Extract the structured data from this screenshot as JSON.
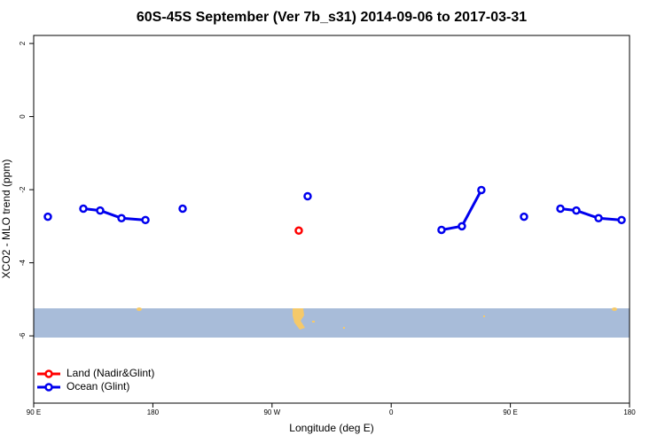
{
  "chart_data": {
    "type": "line",
    "title": "60S-45S September (Ver 7b_s31)   2014-09-06 to 2017-03-31",
    "x_label": "Longitude (deg E)",
    "y_label": "XCO2 - MLO trend (ppm)",
    "xlim": [
      90,
      540
    ],
    "xticks": [
      {
        "value": 90,
        "label": "90 E"
      },
      180,
      {
        "value": 270,
        "label": "90 W"
      },
      {
        "value": 360,
        "label": "0"
      },
      {
        "value": 450,
        "label": "90 E"
      },
      {
        "value": 540,
        "label": "180"
      }
    ],
    "ylim": [
      -7.84,
      2.22
    ],
    "yticks": [
      2,
      0,
      -2,
      -4,
      -6
    ],
    "legend": "bottom-left",
    "series": [
      {
        "name": "Land (Nadir&Glint)",
        "color": "#ff0000",
        "x": [
          290.2
        ],
        "values": [
          -3.12
        ]
      },
      {
        "name": "Ocean (Glint)",
        "color": "#0000ee",
        "x": [
          100.7,
          null,
          127.5,
          140.2,
          156.3,
          174.4,
          null,
          202.5,
          null,
          296.9,
          null,
          398,
          413.4,
          428.1,
          null,
          460.3,
          null,
          487.8,
          499.8,
          516.6,
          534
        ],
        "values": [
          -2.74,
          null,
          -2.52,
          -2.57,
          -2.78,
          -2.83,
          null,
          -2.52,
          null,
          -2.18,
          null,
          -3.1,
          -3.0,
          -2.01,
          null,
          -2.74,
          null,
          -2.52,
          -2.57,
          -2.78,
          -2.83
        ]
      }
    ]
  }
}
